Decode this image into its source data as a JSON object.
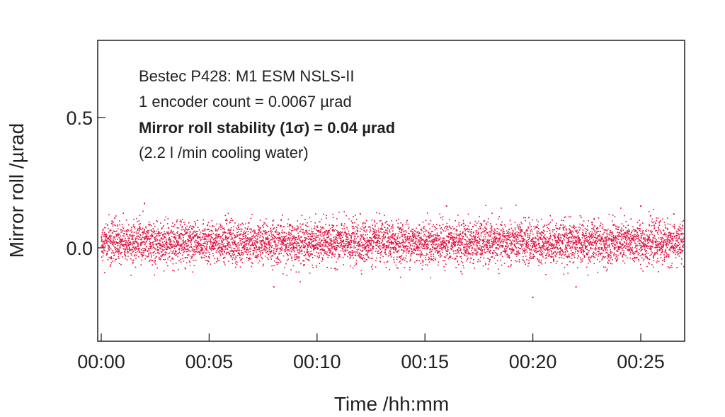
{
  "chart_data": {
    "type": "scatter",
    "xlabel": "Time /hh:mm",
    "ylabel": "Mirror roll /µrad",
    "x_unit": "minutes",
    "xlim": [
      "00:00",
      "00:27"
    ],
    "ylim": [
      -0.35,
      0.8
    ],
    "x_ticks": [
      "00:00",
      "00:05",
      "00:10",
      "00:15",
      "00:20",
      "00:25"
    ],
    "y_ticks": [
      "0.0",
      "0.5"
    ],
    "grid": false,
    "legend": "none",
    "marker_color": "#e0103f",
    "annotations": [
      "Bestec P428: M1 ESM NSLS-II",
      "1 encoder count = 0.0067 µrad",
      "Mirror roll stability (1σ) = 0.04 µrad",
      "(2.2 l /min cooling water)"
    ],
    "series": [
      {
        "mean": 0.02,
        "std": 0.04,
        "min": -0.19,
        "max": 0.17,
        "x_range_minutes": [
          0,
          27
        ],
        "sample_points": [
          {
            "x": "00:02",
            "y": 0.17
          },
          {
            "x": "00:08",
            "y": -0.15
          },
          {
            "x": "00:12",
            "y": 0.13
          },
          {
            "x": "00:16",
            "y": 0.16
          },
          {
            "x": "00:20",
            "y": -0.19
          },
          {
            "x": "00:22",
            "y": -0.15
          },
          {
            "x": "00:25",
            "y": 0.16
          }
        ]
      }
    ]
  }
}
